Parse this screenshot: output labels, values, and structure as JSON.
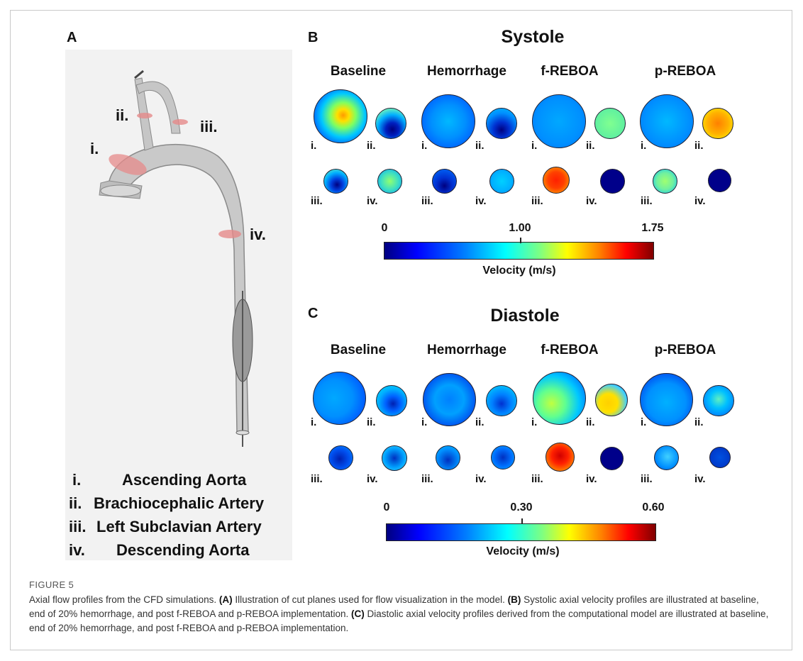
{
  "panels": {
    "A": "A",
    "B": "B",
    "C": "C"
  },
  "systole": {
    "title": "Systole",
    "columns": [
      "Baseline",
      "Hemorrhage",
      "f-REBOA",
      "p-REBOA"
    ],
    "colorbar": {
      "min": "0",
      "mid": "1.00",
      "max": "1.75",
      "label": "Velocity (m/s)"
    }
  },
  "diastole": {
    "title": "Diastole",
    "columns": [
      "Baseline",
      "Hemorrhage",
      "f-REBOA",
      "p-REBOA"
    ],
    "colorbar": {
      "min": "0",
      "mid": "0.30",
      "max": "0.60",
      "label": "Velocity (m/s)"
    }
  },
  "row_labels": {
    "i": "i.",
    "ii": "ii.",
    "iii": "iii.",
    "iv": "iv."
  },
  "model_labels": {
    "i": "i.",
    "ii": "ii.",
    "iii": "iii.",
    "iv": "iv."
  },
  "legend": [
    {
      "num": "i.",
      "name": "Ascending Aorta"
    },
    {
      "num": "ii.",
      "name": "Brachiocephalic  Artery"
    },
    {
      "num": "iii.",
      "name": "Left Subclavian  Artery"
    },
    {
      "num": "iv.",
      "name": "Descending Aorta"
    }
  ],
  "figure_label": "FIGURE 5",
  "caption": {
    "intro": "Axial flow profiles from the CFD simulations.",
    "a_tag": "(A)",
    "a_text": "Illustration of cut planes used for flow visualization in the model.",
    "b_tag": "(B)",
    "b_text": "Systolic axial velocity profiles are illustrated at baseline, end of 20% hemorrhage, and post f-REBOA and p-REBOA implementation.",
    "c_tag": "(C)",
    "c_text": "Diastolic axial velocity profiles derived from the computational model are illustrated at baseline, end of 20% hemorrhage, and post f-REBOA and p-REBOA implementation."
  }
}
